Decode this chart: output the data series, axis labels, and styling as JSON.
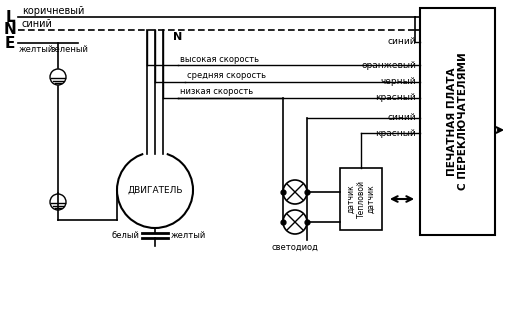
{
  "bg_color": "#ffffff",
  "line_color": "#000000",
  "lne_labels": [
    "L",
    "N",
    "E"
  ],
  "wire_labels_right": [
    "синий",
    "оранжевый",
    "черный",
    "красный",
    "синий",
    "красный"
  ],
  "speed_labels": [
    "высокая скорость",
    "средняя скорость",
    "низкая скорость"
  ],
  "motor_label": "ДВИГАТЕЛЬ",
  "led_label": "светодиод",
  "sensor_text": "датчик\nТепловой\nдатчик",
  "board_title": "ПЕЧАТНАЯ ПЛАТА\nС ПЕРЕКЛЮЧАТЕЛЯМИ",
  "wire_bottom_labels": [
    "белый",
    "желтый"
  ],
  "n_label": "N",
  "label_brown": "коричневый",
  "label_blue": "синий",
  "label_yellow": "желтый",
  "label_green": "зеленый"
}
